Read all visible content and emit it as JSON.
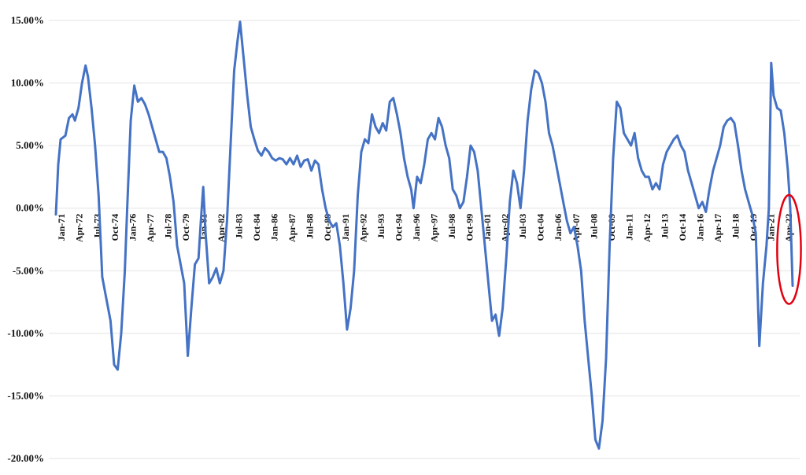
{
  "chart_data": {
    "type": "line",
    "title": "",
    "xlabel": "",
    "ylabel": "",
    "ylim": [
      -20,
      15
    ],
    "y_ticks": [
      15,
      10,
      5,
      0,
      -5,
      -10,
      -15,
      -20
    ],
    "y_tick_labels": [
      "15.00%",
      "10.00%",
      "5.00%",
      "0.00%",
      "-5.00%",
      "-10.00%",
      "-15.00%",
      "-20.00%"
    ],
    "x_range": [
      "1971-01",
      "2022-09"
    ],
    "x_tick_labels": [
      "Jan-71",
      "Apr-72",
      "Jul-73",
      "Oct-74",
      "Jan-76",
      "Apr-77",
      "Jul-78",
      "Oct-79",
      "Jan-81",
      "Apr-82",
      "Jul-83",
      "Oct-84",
      "Jan-86",
      "Apr-87",
      "Jul-88",
      "Oct-89",
      "Jan-91",
      "Apr-92",
      "Jul-93",
      "Oct-94",
      "Jan-96",
      "Apr-97",
      "Jul-98",
      "Oct-99",
      "Jan-01",
      "Apr-02",
      "Jul-03",
      "Oct-04",
      "Jan-06",
      "Apr-07",
      "Jul-08",
      "Oct-09",
      "Jan-11",
      "Apr-12",
      "Jul-13",
      "Oct-14",
      "Jan-16",
      "Apr-17",
      "Jul-18",
      "Oct-19",
      "Jan-21",
      "Apr-22"
    ],
    "grid": true,
    "legend": "none",
    "series": [
      {
        "color": "#4472c4",
        "points": [
          [
            "1971-01",
            -0.5
          ],
          [
            "1971-03",
            3.5
          ],
          [
            "1971-05",
            5.5
          ],
          [
            "1971-09",
            5.8
          ],
          [
            "1971-12",
            7.2
          ],
          [
            "1972-03",
            7.5
          ],
          [
            "1972-05",
            7.0
          ],
          [
            "1972-08",
            8.0
          ],
          [
            "1972-11",
            10.0
          ],
          [
            "1973-02",
            11.4
          ],
          [
            "1973-04",
            10.5
          ],
          [
            "1973-07",
            8.0
          ],
          [
            "1973-10",
            5.0
          ],
          [
            "1974-01",
            1.0
          ],
          [
            "1974-04",
            -5.5
          ],
          [
            "1974-07",
            -7.0
          ],
          [
            "1974-11",
            -9.0
          ],
          [
            "1975-02",
            -12.5
          ],
          [
            "1975-05",
            -12.9
          ],
          [
            "1975-08",
            -10.0
          ],
          [
            "1975-11",
            -5.0
          ],
          [
            "1976-01",
            0.0
          ],
          [
            "1976-04",
            7.0
          ],
          [
            "1976-07",
            9.8
          ],
          [
            "1976-10",
            8.5
          ],
          [
            "1977-01",
            8.8
          ],
          [
            "1977-04",
            8.3
          ],
          [
            "1977-07",
            7.5
          ],
          [
            "1977-10",
            6.5
          ],
          [
            "1978-01",
            5.5
          ],
          [
            "1978-04",
            4.5
          ],
          [
            "1978-07",
            4.5
          ],
          [
            "1978-10",
            4.0
          ],
          [
            "1979-01",
            2.5
          ],
          [
            "1979-04",
            0.5
          ],
          [
            "1979-07",
            -3.0
          ],
          [
            "1979-10",
            -4.5
          ],
          [
            "1980-01",
            -6.0
          ],
          [
            "1980-04",
            -11.8
          ],
          [
            "1980-07",
            -8.0
          ],
          [
            "1980-10",
            -4.5
          ],
          [
            "1981-01",
            -4.0
          ],
          [
            "1981-03",
            -1.0
          ],
          [
            "1981-05",
            1.7
          ],
          [
            "1981-07",
            -2.0
          ],
          [
            "1981-10",
            -6.0
          ],
          [
            "1982-01",
            -5.5
          ],
          [
            "1982-04",
            -4.8
          ],
          [
            "1982-07",
            -6.0
          ],
          [
            "1982-10",
            -5.0
          ],
          [
            "1983-01",
            -1.0
          ],
          [
            "1983-04",
            5.0
          ],
          [
            "1983-07",
            11.0
          ],
          [
            "1983-10",
            13.5
          ],
          [
            "1983-12",
            14.9
          ],
          [
            "1984-03",
            12.0
          ],
          [
            "1984-06",
            9.0
          ],
          [
            "1984-09",
            6.5
          ],
          [
            "1984-12",
            5.5
          ],
          [
            "1985-03",
            4.6
          ],
          [
            "1985-06",
            4.2
          ],
          [
            "1985-09",
            4.8
          ],
          [
            "1985-12",
            4.5
          ],
          [
            "1986-03",
            4.0
          ],
          [
            "1986-06",
            3.8
          ],
          [
            "1986-09",
            4.0
          ],
          [
            "1986-12",
            3.9
          ],
          [
            "1987-03",
            3.5
          ],
          [
            "1987-06",
            4.0
          ],
          [
            "1987-09",
            3.5
          ],
          [
            "1987-12",
            4.2
          ],
          [
            "1988-03",
            3.3
          ],
          [
            "1988-06",
            3.8
          ],
          [
            "1988-09",
            3.9
          ],
          [
            "1988-12",
            3.0
          ],
          [
            "1989-03",
            3.8
          ],
          [
            "1989-06",
            3.5
          ],
          [
            "1989-09",
            1.5
          ],
          [
            "1989-12",
            0.0
          ],
          [
            "1990-03",
            -1.0
          ],
          [
            "1990-06",
            -1.5
          ],
          [
            "1990-09",
            -1.2
          ],
          [
            "1990-12",
            -3.0
          ],
          [
            "1991-03",
            -6.0
          ],
          [
            "1991-06",
            -9.7
          ],
          [
            "1991-09",
            -8.0
          ],
          [
            "1991-12",
            -5.0
          ],
          [
            "1992-03",
            1.0
          ],
          [
            "1992-06",
            4.5
          ],
          [
            "1992-09",
            5.5
          ],
          [
            "1992-12",
            5.2
          ],
          [
            "1993-03",
            7.5
          ],
          [
            "1993-06",
            6.5
          ],
          [
            "1993-09",
            6.0
          ],
          [
            "1993-12",
            6.8
          ],
          [
            "1994-03",
            6.2
          ],
          [
            "1994-06",
            8.5
          ],
          [
            "1994-09",
            8.8
          ],
          [
            "1994-12",
            7.5
          ],
          [
            "1995-03",
            6.0
          ],
          [
            "1995-06",
            4.0
          ],
          [
            "1995-09",
            2.5
          ],
          [
            "1995-12",
            1.5
          ],
          [
            "1996-02",
            0.0
          ],
          [
            "1996-05",
            2.5
          ],
          [
            "1996-08",
            2.0
          ],
          [
            "1996-11",
            3.5
          ],
          [
            "1997-02",
            5.5
          ],
          [
            "1997-05",
            6.0
          ],
          [
            "1997-08",
            5.5
          ],
          [
            "1997-11",
            7.2
          ],
          [
            "1998-02",
            6.5
          ],
          [
            "1998-05",
            5.0
          ],
          [
            "1998-08",
            4.0
          ],
          [
            "1998-11",
            1.5
          ],
          [
            "1999-02",
            1.0
          ],
          [
            "1999-05",
            0.0
          ],
          [
            "1999-08",
            0.5
          ],
          [
            "1999-11",
            2.5
          ],
          [
            "2000-02",
            5.0
          ],
          [
            "2000-05",
            4.5
          ],
          [
            "2000-08",
            3.0
          ],
          [
            "2000-11",
            0.0
          ],
          [
            "2001-02",
            -3.0
          ],
          [
            "2001-05",
            -6.0
          ],
          [
            "2001-08",
            -9.0
          ],
          [
            "2001-11",
            -8.5
          ],
          [
            "2002-02",
            -10.2
          ],
          [
            "2002-05",
            -8.0
          ],
          [
            "2002-08",
            -4.0
          ],
          [
            "2002-11",
            0.5
          ],
          [
            "2003-02",
            3.0
          ],
          [
            "2003-05",
            2.0
          ],
          [
            "2003-08",
            0.0
          ],
          [
            "2003-11",
            3.0
          ],
          [
            "2004-02",
            7.0
          ],
          [
            "2004-05",
            9.5
          ],
          [
            "2004-08",
            11.0
          ],
          [
            "2004-11",
            10.8
          ],
          [
            "2005-02",
            10.0
          ],
          [
            "2005-05",
            8.5
          ],
          [
            "2005-08",
            6.0
          ],
          [
            "2005-11",
            5.0
          ],
          [
            "2006-02",
            3.5
          ],
          [
            "2006-05",
            2.0
          ],
          [
            "2006-08",
            0.5
          ],
          [
            "2006-11",
            -1.0
          ],
          [
            "2007-02",
            -2.0
          ],
          [
            "2007-05",
            -1.5
          ],
          [
            "2007-08",
            -3.0
          ],
          [
            "2007-11",
            -5.0
          ],
          [
            "2008-02",
            -9.0
          ],
          [
            "2008-05",
            -12.0
          ],
          [
            "2008-08",
            -15.0
          ],
          [
            "2008-11",
            -18.5
          ],
          [
            "2009-02",
            -19.2
          ],
          [
            "2009-05",
            -17.0
          ],
          [
            "2009-08",
            -12.0
          ],
          [
            "2009-11",
            -3.0
          ],
          [
            "2010-02",
            4.0
          ],
          [
            "2010-05",
            8.5
          ],
          [
            "2010-08",
            8.0
          ],
          [
            "2010-11",
            6.0
          ],
          [
            "2011-02",
            5.5
          ],
          [
            "2011-05",
            5.0
          ],
          [
            "2011-08",
            6.0
          ],
          [
            "2011-11",
            4.0
          ],
          [
            "2012-02",
            3.0
          ],
          [
            "2012-05",
            2.5
          ],
          [
            "2012-08",
            2.5
          ],
          [
            "2012-11",
            1.5
          ],
          [
            "2013-02",
            2.0
          ],
          [
            "2013-05",
            1.5
          ],
          [
            "2013-08",
            3.5
          ],
          [
            "2013-11",
            4.5
          ],
          [
            "2014-02",
            5.0
          ],
          [
            "2014-05",
            5.5
          ],
          [
            "2014-08",
            5.8
          ],
          [
            "2014-11",
            5.0
          ],
          [
            "2015-02",
            4.5
          ],
          [
            "2015-05",
            3.0
          ],
          [
            "2015-08",
            2.0
          ],
          [
            "2015-11",
            1.0
          ],
          [
            "2016-02",
            0.0
          ],
          [
            "2016-05",
            0.5
          ],
          [
            "2016-08",
            -0.3
          ],
          [
            "2016-11",
            1.5
          ],
          [
            "2017-02",
            3.0
          ],
          [
            "2017-05",
            4.0
          ],
          [
            "2017-08",
            5.0
          ],
          [
            "2017-11",
            6.5
          ],
          [
            "2018-02",
            7.0
          ],
          [
            "2018-05",
            7.2
          ],
          [
            "2018-08",
            6.8
          ],
          [
            "2018-11",
            5.0
          ],
          [
            "2019-02",
            3.0
          ],
          [
            "2019-05",
            1.5
          ],
          [
            "2019-08",
            0.5
          ],
          [
            "2019-11",
            -0.5
          ],
          [
            "2020-02",
            -2.0
          ],
          [
            "2020-05",
            -11.0
          ],
          [
            "2020-08",
            -6.0
          ],
          [
            "2020-11",
            -3.0
          ],
          [
            "2021-01",
            0.0
          ],
          [
            "2021-03",
            11.6
          ],
          [
            "2021-05",
            9.0
          ],
          [
            "2021-08",
            8.0
          ],
          [
            "2021-11",
            7.8
          ],
          [
            "2022-02",
            6.0
          ],
          [
            "2022-05",
            3.0
          ],
          [
            "2022-07",
            0.0
          ],
          [
            "2022-09",
            -6.2
          ]
        ]
      }
    ],
    "annotations": [
      {
        "type": "ellipse",
        "color": "#e3000f",
        "center": [
          "2022-06",
          -3.3
        ],
        "x_span_months": 20,
        "y_span": 8.7
      }
    ]
  }
}
